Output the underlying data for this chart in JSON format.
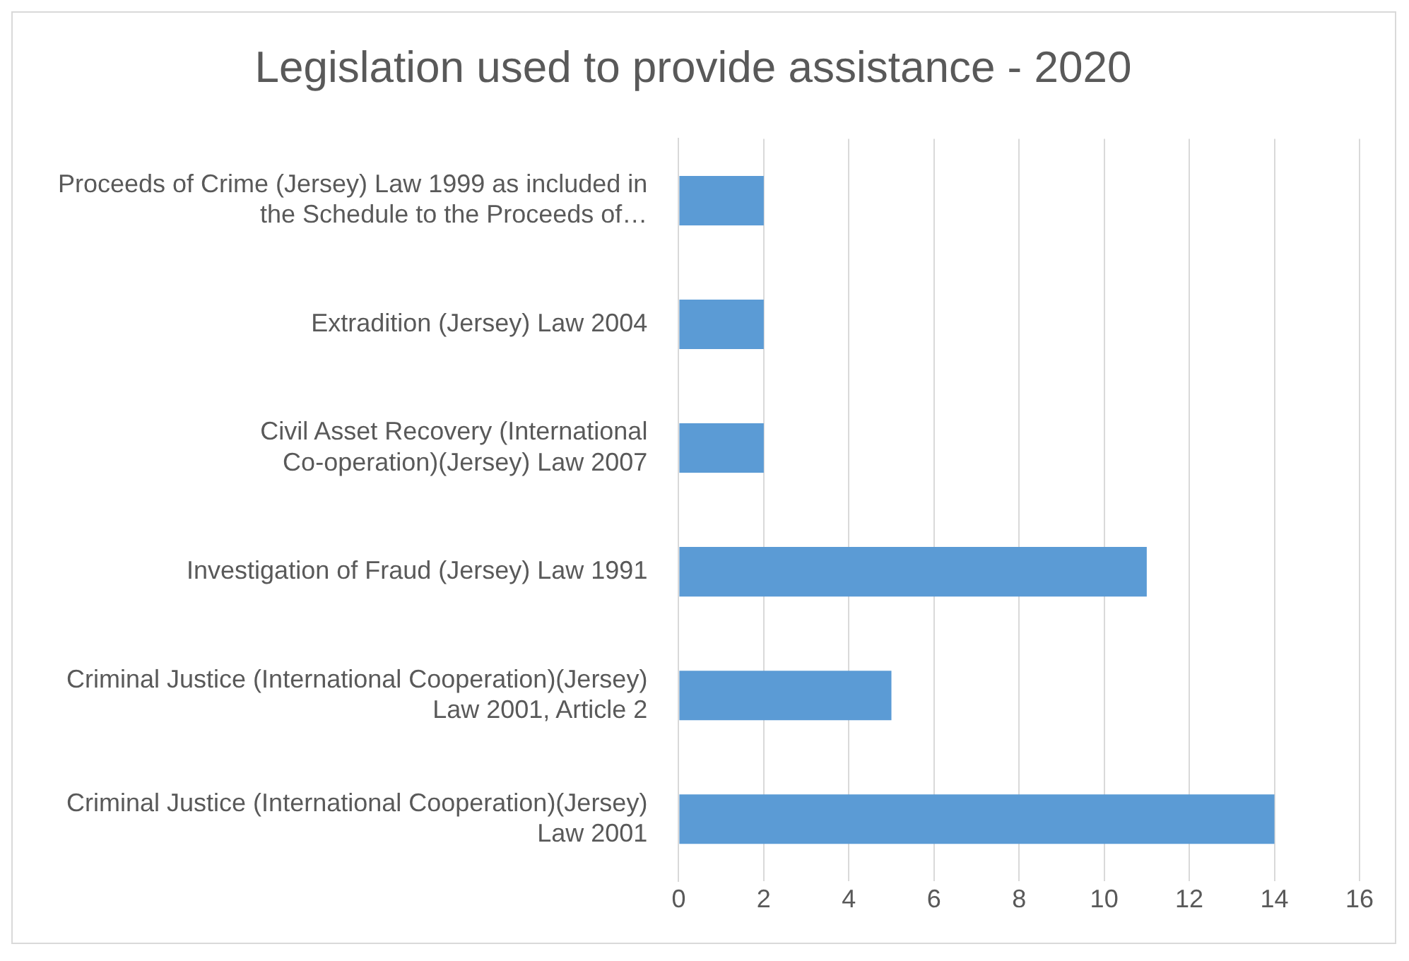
{
  "chart_data": {
    "type": "bar",
    "orientation": "horizontal",
    "title": "Legislation used to provide assistance - 2020",
    "categories": [
      "Proceeds of Crime (Jersey) Law 1999 as included in the Schedule to the Proceeds of…",
      "Extradition (Jersey) Law 2004",
      "Civil Asset Recovery (International Co-operation)(Jersey) Law 2007",
      "Investigation of Fraud (Jersey) Law 1991",
      "Criminal Justice (International Cooperation)(Jersey) Law 2001, Article 2",
      "Criminal Justice (International Cooperation)(Jersey) Law 2001"
    ],
    "values": [
      2,
      2,
      2,
      11,
      5,
      14
    ],
    "color": "#5b9bd5",
    "xlim": [
      0,
      16
    ],
    "xticks": [
      0,
      2,
      4,
      6,
      8,
      10,
      12,
      14,
      16
    ],
    "grid": "x",
    "legend": false
  }
}
